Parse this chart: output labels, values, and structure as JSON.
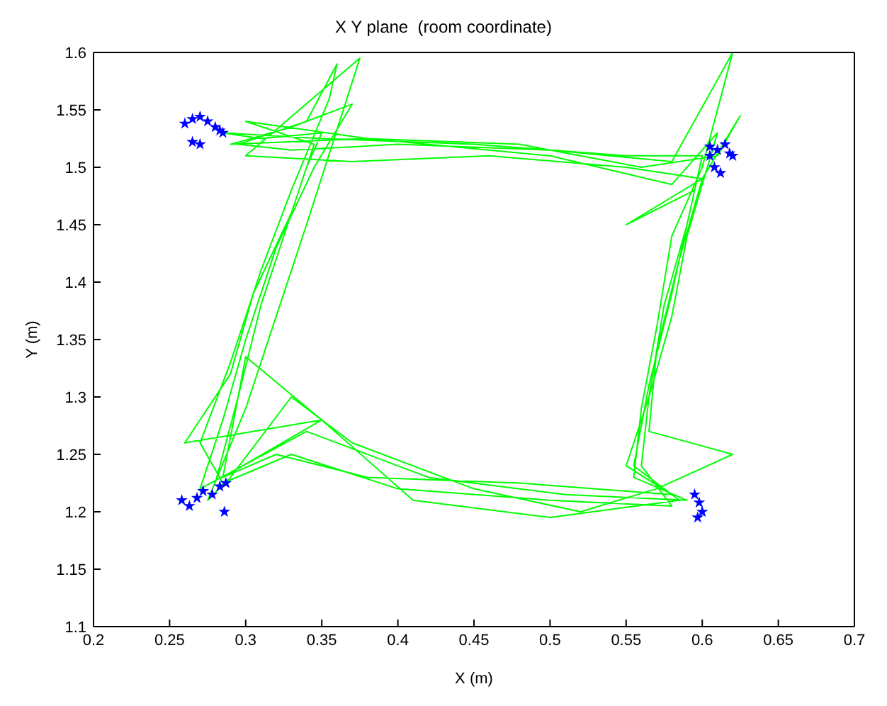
{
  "chart_data": {
    "type": "line",
    "title": "X Y plane  (room coordinate)",
    "xlabel": "X (m)",
    "ylabel": "Y (m)",
    "xlim": [
      0.2,
      0.7
    ],
    "xticks": [
      0.2,
      0.25,
      0.3,
      0.35,
      0.4,
      0.45,
      0.5,
      0.55,
      0.6,
      0.65,
      0.7
    ],
    "ylim": [
      1.1,
      1.6
    ],
    "yticks": [
      1.1,
      1.15,
      1.2,
      1.25,
      1.3,
      1.35,
      1.4,
      1.45,
      1.5,
      1.55,
      1.6
    ],
    "grid": false,
    "series": [
      {
        "color": "#00ff00",
        "marker": "none",
        "line_style": "solid",
        "x": [
          0.28,
          0.295,
          0.31,
          0.325,
          0.34,
          0.35,
          0.31,
          0.285,
          0.35,
          0.45,
          0.55,
          0.6,
          0.59,
          0.575,
          0.565,
          0.56,
          0.58,
          0.5,
          0.4,
          0.33,
          0.285,
          0.27,
          0.29,
          0.31,
          0.33,
          0.355,
          0.36,
          0.34,
          0.295,
          0.33,
          0.4,
          0.5,
          0.58,
          0.62,
          0.6,
          0.58,
          0.57,
          0.56,
          0.555,
          0.59,
          0.51,
          0.42,
          0.34,
          0.27,
          0.285,
          0.3,
          0.32,
          0.345,
          0.37,
          0.33,
          0.29,
          0.38,
          0.48,
          0.56,
          0.61,
          0.625,
          0.6,
          0.585,
          0.57,
          0.565,
          0.62,
          0.57,
          0.52,
          0.45,
          0.37,
          0.33,
          0.29,
          0.275,
          0.3,
          0.32,
          0.34,
          0.375,
          0.3,
          0.37,
          0.46,
          0.55,
          0.6,
          0.55,
          0.595,
          0.58,
          0.565,
          0.555,
          0.585,
          0.5,
          0.41,
          0.35,
          0.3,
          0.285,
          0.35,
          0.26,
          0.29,
          0.305,
          0.33,
          0.345,
          0.3,
          0.38,
          0.5,
          0.58,
          0.61,
          0.59,
          0.58,
          0.565,
          0.55,
          0.58,
          0.48,
          0.38,
          0.32,
          0.285
        ],
        "values": [
          1.225,
          1.3,
          1.38,
          1.44,
          1.5,
          1.53,
          1.525,
          1.53,
          1.525,
          1.52,
          1.51,
          1.51,
          1.45,
          1.38,
          1.3,
          1.24,
          1.205,
          1.21,
          1.22,
          1.25,
          1.225,
          1.26,
          1.33,
          1.41,
          1.48,
          1.56,
          1.59,
          1.54,
          1.52,
          1.515,
          1.52,
          1.515,
          1.505,
          1.6,
          1.5,
          1.44,
          1.36,
          1.29,
          1.23,
          1.21,
          1.215,
          1.23,
          1.27,
          1.22,
          1.28,
          1.35,
          1.43,
          1.5,
          1.555,
          1.535,
          1.52,
          1.525,
          1.52,
          1.5,
          1.51,
          1.545,
          1.49,
          1.42,
          1.34,
          1.27,
          1.25,
          1.22,
          1.2,
          1.22,
          1.26,
          1.3,
          1.23,
          1.21,
          1.29,
          1.37,
          1.45,
          1.595,
          1.51,
          1.505,
          1.51,
          1.5,
          1.49,
          1.45,
          1.48,
          1.39,
          1.31,
          1.24,
          1.21,
          1.195,
          1.21,
          1.28,
          1.335,
          1.23,
          1.28,
          1.26,
          1.32,
          1.39,
          1.46,
          1.52,
          1.54,
          1.525,
          1.51,
          1.485,
          1.53,
          1.44,
          1.37,
          1.3,
          1.24,
          1.215,
          1.225,
          1.23,
          1.25,
          1.23
        ]
      },
      {
        "type": "scatter",
        "color": "#0000ff",
        "marker": "star",
        "x": [
          0.26,
          0.265,
          0.27,
          0.275,
          0.28,
          0.285,
          0.265,
          0.27,
          0.283,
          0.605,
          0.61,
          0.615,
          0.62,
          0.608,
          0.612,
          0.618,
          0.605,
          0.595,
          0.598,
          0.6,
          0.597,
          0.258,
          0.263,
          0.268,
          0.272,
          0.278,
          0.283,
          0.287,
          0.286
        ],
        "values": [
          1.538,
          1.542,
          1.544,
          1.54,
          1.535,
          1.53,
          1.522,
          1.52,
          1.532,
          1.51,
          1.515,
          1.52,
          1.51,
          1.5,
          1.495,
          1.512,
          1.518,
          1.215,
          1.208,
          1.2,
          1.195,
          1.21,
          1.205,
          1.212,
          1.218,
          1.215,
          1.222,
          1.225,
          1.2
        ]
      }
    ]
  }
}
